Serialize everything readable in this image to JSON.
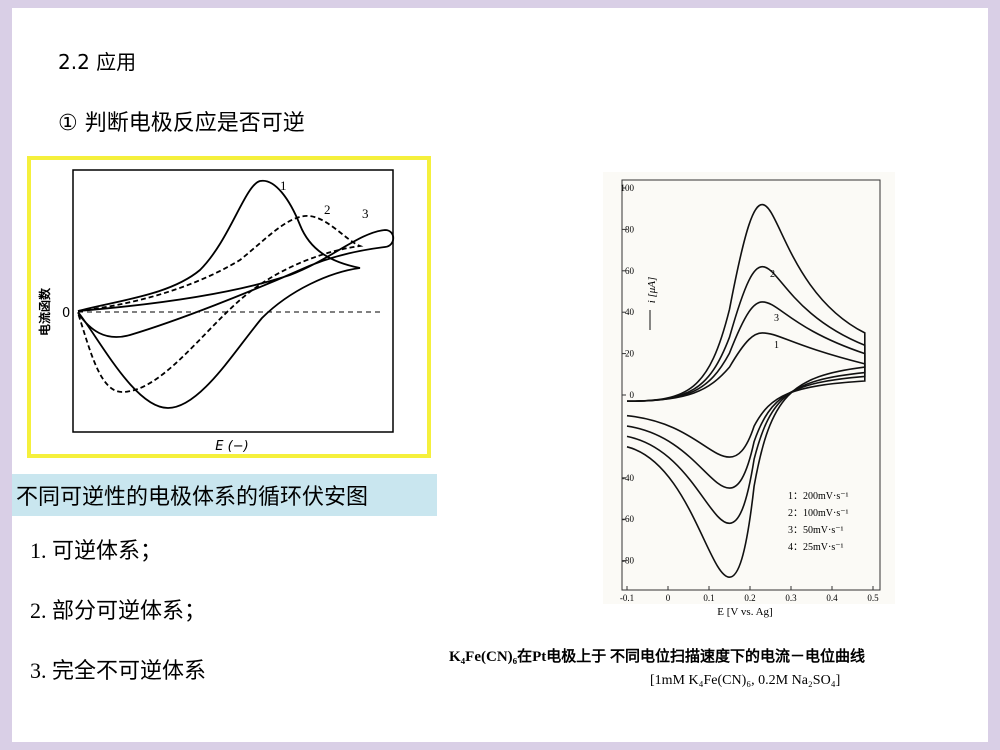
{
  "section_title": "2.2 应用",
  "subtitle": "① 判断电极反应是否可逆",
  "left_figure": {
    "y_axis_label": "电流函数",
    "x_axis_label": "E (−)",
    "zero_label": "0",
    "curve_labels": [
      "1",
      "2",
      "3"
    ]
  },
  "left_caption": "不同可逆性的电极体系的循环伏安图",
  "list": [
    "1. 可逆体系；",
    "2. 部分可逆体系；",
    "3. 完全不可逆体系"
  ],
  "right_figure": {
    "y_axis_label": "i [μA]",
    "x_axis_label": "E [V vs. Ag]",
    "yticks": [
      "100",
      "80",
      "60",
      "40",
      "20",
      "0",
      "-40",
      "-60",
      "-80"
    ],
    "xticks": [
      "-0.1",
      "0",
      "0.1",
      "0.2",
      "0.3",
      "0.4",
      "0.5"
    ],
    "curve_labels": [
      "2",
      "3",
      "1"
    ],
    "legend": [
      "1：200mV·s⁻¹",
      "2：100mV·s⁻¹",
      "3：50mV·s⁻¹",
      "4：25mV·s⁻¹"
    ],
    "caption": [
      "K₄Fe(CN)₆在Pt电极上于 不同电位扫描速度下的电流－电位曲线",
      "[1mM K₄Fe(CN)₆, 0.2M Na₂SO₄]"
    ]
  }
}
